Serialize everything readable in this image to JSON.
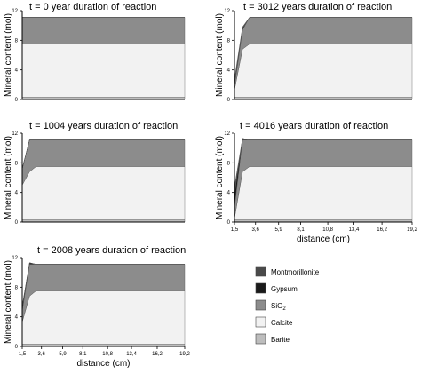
{
  "y_axis_label": "Mineral content (mol)",
  "x_axis_label": "distance (cm)",
  "y_ticks": [
    "0",
    "4",
    "8",
    "12"
  ],
  "x_ticks": [
    "1,5",
    "3,6",
    "5,9",
    "8,1",
    "10,8",
    "13,4",
    "16,2",
    "19,2"
  ],
  "legend": [
    {
      "name": "Montmorillonite",
      "color": "#4a4a4a"
    },
    {
      "name": "Gypsum",
      "color": "#1a1a1a"
    },
    {
      "name": "SiO",
      "subscript": "2",
      "color": "#8c8c8c"
    },
    {
      "name": "Calcite",
      "color": "#f2f2f2"
    },
    {
      "name": "Barite",
      "color": "#bdbdbd"
    }
  ],
  "chart_data": [
    {
      "type": "area",
      "title": "t  = 0 year duration of reaction",
      "x": [
        1.5,
        3.6,
        19.2
      ],
      "ylim": [
        0,
        12
      ],
      "series": [
        {
          "name": "Barite",
          "values": [
            0.3,
            0.3,
            0.3
          ]
        },
        {
          "name": "Calcite",
          "values": [
            7.2,
            7.2,
            7.2
          ]
        },
        {
          "name": "SiO2",
          "values": [
            3.6,
            3.6,
            3.6
          ]
        },
        {
          "name": "Gypsum",
          "values": [
            0,
            0,
            0
          ]
        },
        {
          "name": "Montmorillonite",
          "values": [
            0,
            0,
            0
          ]
        }
      ]
    },
    {
      "type": "area",
      "title": "t = 1004 years duration of reaction",
      "x": [
        1.5,
        2.3,
        3.0,
        19.2
      ],
      "ylim": [
        0,
        12
      ],
      "series": [
        {
          "name": "Barite",
          "values": [
            0.3,
            0.3,
            0.3,
            0.3
          ]
        },
        {
          "name": "Calcite",
          "values": [
            4.7,
            6.5,
            7.2,
            7.2
          ]
        },
        {
          "name": "SiO2",
          "values": [
            2.2,
            4.3,
            3.6,
            3.6
          ]
        },
        {
          "name": "Gypsum",
          "values": [
            0,
            0,
            0,
            0
          ]
        },
        {
          "name": "Montmorillonite",
          "values": [
            0,
            0,
            0,
            0
          ]
        }
      ]
    },
    {
      "type": "area",
      "title": "t = 2008 years duration of reaction",
      "x": [
        1.5,
        2.3,
        3.0,
        19.2
      ],
      "ylim": [
        0,
        12
      ],
      "series": [
        {
          "name": "Barite",
          "values": [
            0.3,
            0.3,
            0.3,
            0.3
          ]
        },
        {
          "name": "Calcite",
          "values": [
            3.0,
            6.5,
            7.2,
            7.2
          ]
        },
        {
          "name": "SiO2",
          "values": [
            1.5,
            4.3,
            3.6,
            3.6
          ]
        },
        {
          "name": "Gypsum",
          "values": [
            0.5,
            0.2,
            0,
            0
          ]
        },
        {
          "name": "Montmorillonite",
          "values": [
            0.2,
            0,
            0,
            0
          ]
        }
      ]
    },
    {
      "type": "area",
      "title": "t = 3012 years duration of reaction",
      "x": [
        1.5,
        2.3,
        3.0,
        19.2
      ],
      "ylim": [
        0,
        12
      ],
      "series": [
        {
          "name": "Barite",
          "values": [
            0.3,
            0.3,
            0.3,
            0.3
          ]
        },
        {
          "name": "Calcite",
          "values": [
            1.0,
            6.5,
            7.2,
            7.2
          ]
        },
        {
          "name": "SiO2",
          "values": [
            0.5,
            2.6,
            3.6,
            3.6
          ]
        },
        {
          "name": "Gypsum",
          "values": [
            0.5,
            0.2,
            0,
            0
          ]
        },
        {
          "name": "Montmorillonite",
          "values": [
            0.5,
            0.2,
            0,
            0
          ]
        }
      ]
    },
    {
      "type": "area",
      "title": "t = 4016 years duration of reaction",
      "x": [
        1.5,
        2.3,
        3.0,
        19.2
      ],
      "ylim": [
        0,
        12
      ],
      "series": [
        {
          "name": "Barite",
          "values": [
            0.3,
            0.3,
            0.3,
            0.3
          ]
        },
        {
          "name": "Calcite",
          "values": [
            0.2,
            6.5,
            7.2,
            7.2
          ]
        },
        {
          "name": "SiO2",
          "values": [
            1.5,
            4.3,
            3.6,
            3.6
          ]
        },
        {
          "name": "Gypsum",
          "values": [
            1.8,
            0.2,
            0,
            0
          ]
        },
        {
          "name": "Montmorillonite",
          "values": [
            1.0,
            0,
            0,
            0
          ]
        }
      ]
    }
  ]
}
